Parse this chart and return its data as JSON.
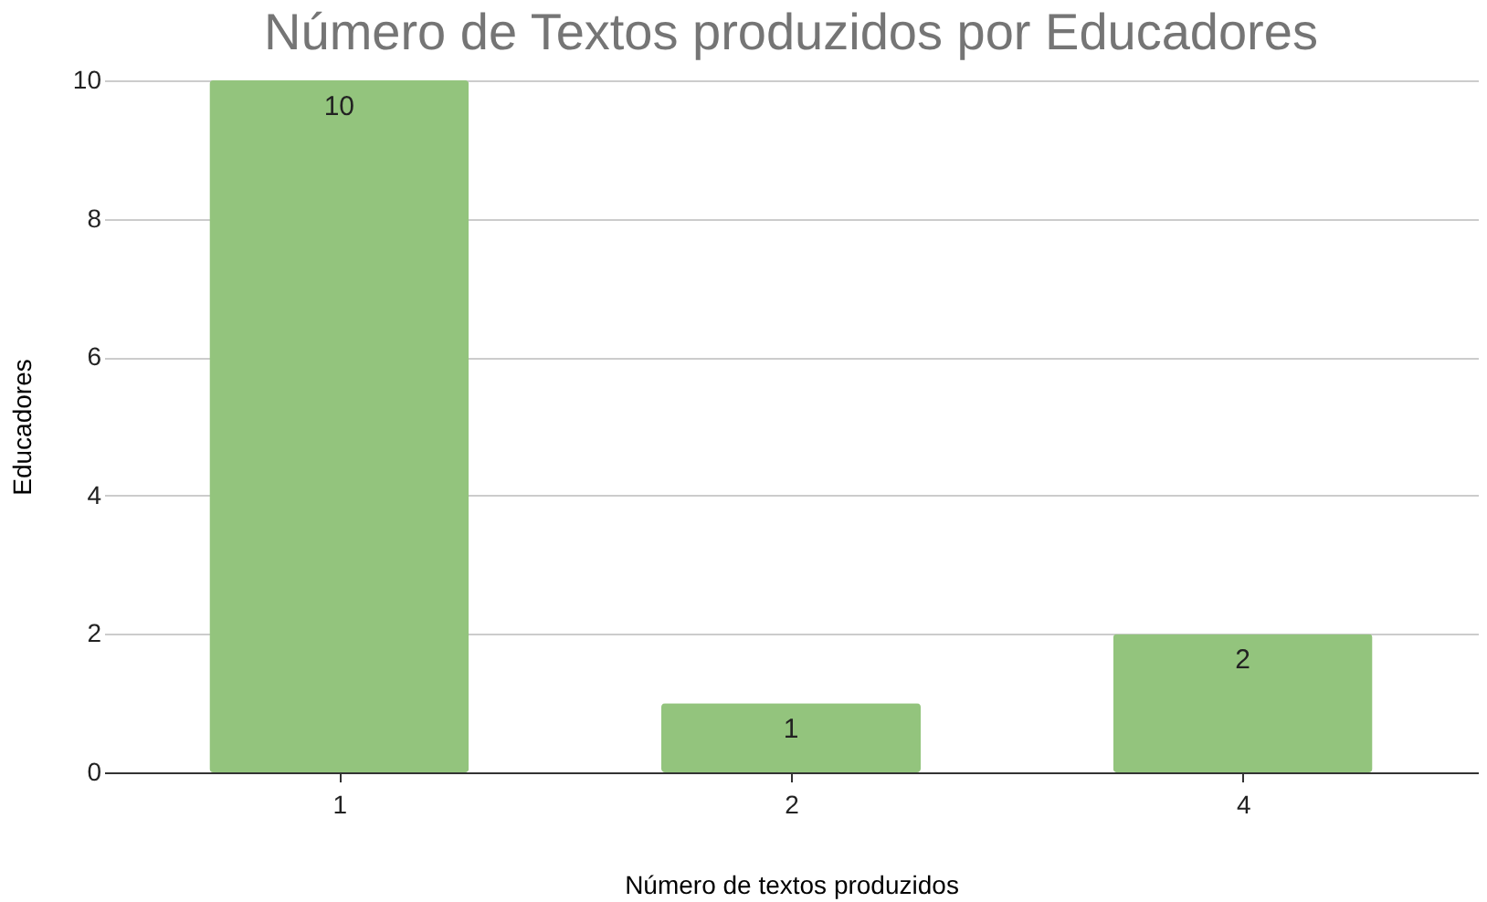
{
  "chart_data": {
    "type": "bar",
    "title": "Número de Textos produzidos por Educadores",
    "xlabel": "Número de textos produzidos",
    "ylabel": "Educadores",
    "categories": [
      "1",
      "2",
      "4"
    ],
    "series": [
      {
        "color": "#93c47d",
        "values": [
          10,
          1,
          2
        ]
      }
    ],
    "ylim": [
      0,
      10
    ],
    "yticks": [
      0,
      2,
      4,
      6,
      8,
      10
    ],
    "grid": "y",
    "data_labels": true
  }
}
